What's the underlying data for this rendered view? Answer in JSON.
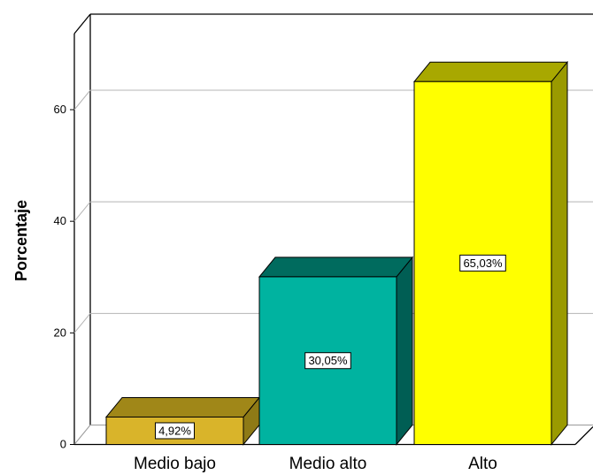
{
  "chart_data": {
    "type": "bar",
    "style": "3d",
    "categories": [
      "Medio bajo",
      "Medio alto",
      "Alto"
    ],
    "values": [
      4.92,
      30.05,
      65.03
    ],
    "data_labels": [
      "4,92%",
      "30,05%",
      "65,03%"
    ],
    "ylabel": "Porcentaje",
    "xlabel": "",
    "ylim": [
      0,
      70
    ],
    "yticks": [
      0,
      20,
      40,
      60
    ],
    "ytick_labels": [
      "0",
      "20",
      "40",
      "60"
    ],
    "grid": true,
    "colors": {
      "front": [
        "#d9b42a",
        "#00b3a0",
        "#ffff00"
      ],
      "top": [
        "#a08718",
        "#006b5e",
        "#a8a800"
      ],
      "side": [
        "#8e7a16",
        "#005e54",
        "#9a9a00"
      ]
    }
  }
}
